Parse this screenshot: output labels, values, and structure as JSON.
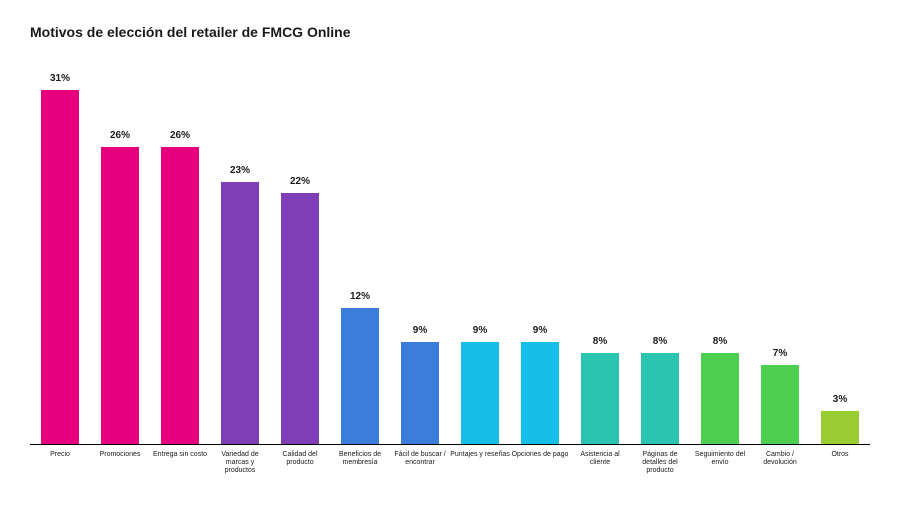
{
  "title": "Motivos de elección del retailer de FMCG Online",
  "title_fontsize": 14,
  "title_color": "#1a1a1a",
  "chart": {
    "type": "bar",
    "background_color": "#ffffff",
    "baseline_color": "#000000",
    "ylim": [
      0,
      31
    ],
    "bar_width_ratio": 0.62,
    "value_label_fontsize": 10,
    "value_label_fontweight": "700",
    "category_label_fontsize": 7,
    "label_color": "#1a1a1a",
    "bars": [
      {
        "label": "Precio",
        "value": 31,
        "display": "31%",
        "color": "#e6007e"
      },
      {
        "label": "Promociones",
        "value": 26,
        "display": "26%",
        "color": "#e6007e"
      },
      {
        "label": "Entrega sin costo",
        "value": 26,
        "display": "26%",
        "color": "#e6007e"
      },
      {
        "label": "Variedad de marcas y productos",
        "value": 23,
        "display": "23%",
        "color": "#7e3fb6"
      },
      {
        "label": "Calidad del producto",
        "value": 22,
        "display": "22%",
        "color": "#7e3fb6"
      },
      {
        "label": "Beneficios de membresía",
        "value": 12,
        "display": "12%",
        "color": "#3b7dd8"
      },
      {
        "label": "Fácil de buscar / encontrar",
        "value": 9,
        "display": "9%",
        "color": "#3b7dd8"
      },
      {
        "label": "Puntajes y reseñas",
        "value": 9,
        "display": "9%",
        "color": "#17bfe8"
      },
      {
        "label": "Opciones de pago",
        "value": 9,
        "display": "9%",
        "color": "#17bfe8"
      },
      {
        "label": "Asistencia al cliente",
        "value": 8,
        "display": "8%",
        "color": "#2bc4b0"
      },
      {
        "label": "Páginas de detalles del producto",
        "value": 8,
        "display": "8%",
        "color": "#2bc4b0"
      },
      {
        "label": "Seguimiento del envío",
        "value": 8,
        "display": "8%",
        "color": "#4fcf4f"
      },
      {
        "label": "Cambio / devolución",
        "value": 7,
        "display": "7%",
        "color": "#4fcf4f"
      },
      {
        "label": "Otros",
        "value": 3,
        "display": "3%",
        "color": "#9acd32"
      }
    ]
  }
}
